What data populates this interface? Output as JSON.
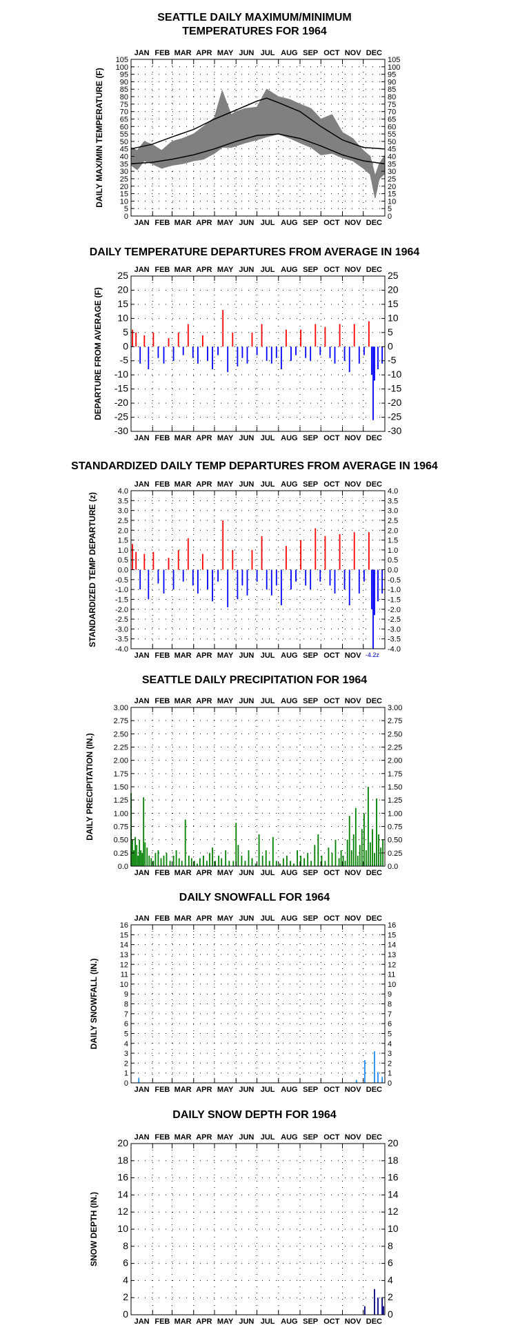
{
  "month_labels": [
    "JAN",
    "FEB",
    "MAR",
    "APR",
    "MAY",
    "JUN",
    "JUL",
    "AUG",
    "SEP",
    "OCT",
    "NOV",
    "DEC"
  ],
  "chart_data": [
    {
      "type": "area",
      "title_lines": [
        "SEATTLE DAILY MAXIMUM/MINIMUM",
        "TEMPERATURES FOR 1964"
      ],
      "ylabel": "DAILY MAX/MIN TEMPERATURE (F)",
      "ylim": [
        0,
        105
      ],
      "yticks": [
        "0",
        "5",
        "10",
        "15",
        "20",
        "25",
        "30",
        "35",
        "40",
        "45",
        "50",
        "55",
        "60",
        "65",
        "70",
        "75",
        "80",
        "85",
        "90",
        "95",
        "100",
        "105"
      ],
      "grid": true,
      "colors": {
        "band": "#808080",
        "normals": "#000000"
      },
      "series": [
        {
          "name": "",
          "role": "normal_max",
          "x_day": [
            1,
            31,
            60,
            91,
            121,
            152,
            182,
            196,
            213,
            244,
            274,
            305,
            335,
            365
          ],
          "values": [
            45,
            48,
            53,
            58,
            65,
            71,
            77,
            79,
            76,
            70,
            60,
            51,
            46,
            45
          ]
        },
        {
          "name": "",
          "role": "normal_min",
          "x_day": [
            1,
            31,
            60,
            91,
            121,
            152,
            182,
            213,
            244,
            274,
            305,
            335,
            365
          ],
          "values": [
            35,
            36,
            38,
            41,
            45,
            50,
            54,
            55,
            52,
            47,
            41,
            37,
            35
          ]
        },
        {
          "name": "",
          "role": "observed_max",
          "x_day": [
            1,
            10,
            20,
            31,
            45,
            60,
            75,
            91,
            105,
            121,
            132,
            145,
            152,
            165,
            182,
            196,
            213,
            230,
            244,
            260,
            274,
            290,
            305,
            320,
            335,
            345,
            352,
            358,
            365
          ],
          "values": [
            46,
            44,
            50,
            48,
            44,
            50,
            52,
            55,
            60,
            66,
            84,
            68,
            70,
            72,
            73,
            85,
            80,
            78,
            75,
            72,
            65,
            68,
            56,
            52,
            44,
            40,
            27,
            35,
            40
          ]
        },
        {
          "name": "",
          "role": "observed_min",
          "x_day": [
            1,
            10,
            20,
            31,
            45,
            60,
            75,
            91,
            105,
            121,
            132,
            145,
            152,
            165,
            182,
            196,
            213,
            230,
            244,
            260,
            274,
            290,
            305,
            320,
            335,
            345,
            352,
            358,
            365
          ],
          "values": [
            34,
            31,
            37,
            35,
            32,
            34,
            35,
            37,
            38,
            42,
            46,
            46,
            47,
            49,
            51,
            53,
            55,
            52,
            49,
            46,
            41,
            42,
            39,
            37,
            32,
            28,
            12,
            25,
            28
          ]
        }
      ]
    },
    {
      "type": "bar",
      "title": "DAILY TEMPERATURE DEPARTURES FROM AVERAGE IN 1964",
      "ylabel": "DEPARTURE FROM AVERAGE (F)",
      "ylim": [
        -30,
        25
      ],
      "yticks": [
        "-30",
        "-25",
        "-20",
        "-15",
        "-10",
        "-5",
        "0",
        "5",
        "10",
        "15",
        "20",
        "25"
      ],
      "grid": true,
      "colors": {
        "positive": "#ff0000",
        "negative": "#0000ff"
      },
      "x_day": [
        3,
        8,
        14,
        20,
        26,
        33,
        40,
        48,
        55,
        62,
        69,
        76,
        83,
        90,
        97,
        104,
        111,
        118,
        126,
        133,
        140,
        147,
        154,
        161,
        168,
        175,
        182,
        189,
        196,
        203,
        210,
        217,
        224,
        231,
        238,
        245,
        252,
        259,
        266,
        273,
        280,
        287,
        294,
        301,
        308,
        315,
        322,
        329,
        336,
        343,
        347,
        349,
        351,
        356,
        362
      ],
      "values": [
        6,
        5,
        -6,
        4,
        -8,
        5,
        -4,
        -6,
        3,
        -5,
        5,
        -3,
        8,
        -4,
        -6,
        4,
        -5,
        -8,
        -3,
        13,
        -9,
        5,
        -7,
        -4,
        -6,
        5,
        -3,
        8,
        -5,
        -6,
        -4,
        -8,
        6,
        -5,
        -3,
        6,
        -4,
        -5,
        8,
        -3,
        7,
        -4,
        -6,
        8,
        -5,
        -9,
        8,
        -6,
        -3,
        9,
        -10,
        -26,
        -12,
        -8,
        -6
      ]
    },
    {
      "type": "bar",
      "title": "STANDARDIZED DAILY TEMP DEPARTURES FROM AVERAGE IN 1964",
      "ylabel": "STANDARDIZED TEMP DEPARTURE (z)",
      "ylim": [
        -4.0,
        4.0
      ],
      "yticks": [
        "-4.0",
        "-3.5",
        "-3.0",
        "-2.5",
        "-2.0",
        "-1.5",
        "-1.0",
        "-0.5",
        "0.0",
        "0.5",
        "1.0",
        "1.5",
        "2.0",
        "2.5",
        "3.0",
        "3.5",
        "4.0"
      ],
      "grid": true,
      "colors": {
        "positive": "#ff0000",
        "negative": "#0000ff"
      },
      "annotation": "-4.2z",
      "x_day": [
        3,
        8,
        14,
        20,
        26,
        33,
        40,
        48,
        55,
        62,
        69,
        76,
        83,
        90,
        97,
        104,
        111,
        118,
        126,
        133,
        140,
        147,
        154,
        161,
        168,
        175,
        182,
        189,
        196,
        203,
        210,
        217,
        224,
        231,
        238,
        245,
        252,
        259,
        266,
        273,
        280,
        287,
        294,
        301,
        308,
        315,
        322,
        329,
        336,
        343,
        347,
        349,
        351,
        356,
        362
      ],
      "values": [
        1.3,
        0.9,
        -1.0,
        0.8,
        -1.5,
        0.9,
        -0.7,
        -1.2,
        0.6,
        -1.0,
        1.0,
        -0.6,
        1.6,
        -0.8,
        -1.2,
        0.8,
        -1.0,
        -1.6,
        -0.6,
        2.5,
        -1.9,
        1.0,
        -1.5,
        -0.8,
        -1.3,
        1.0,
        -0.6,
        1.7,
        -1.0,
        -1.3,
        -0.8,
        -1.8,
        1.2,
        -1.0,
        -0.6,
        1.5,
        -0.8,
        -1.0,
        2.1,
        -0.6,
        1.7,
        -0.8,
        -1.2,
        1.8,
        -1.0,
        -1.8,
        1.9,
        -1.2,
        -0.6,
        1.9,
        -2.0,
        -4.2,
        -2.3,
        -1.6,
        -1.2
      ]
    },
    {
      "type": "bar",
      "title": "SEATTLE DAILY PRECIPITATION FOR 1964",
      "ylabel": "DAILY PRECIPITATION (IN.)",
      "ylim": [
        0,
        3.0
      ],
      "yticks": [
        "0.0",
        "0.25",
        "0.50",
        "0.75",
        "1.00",
        "1.25",
        "1.50",
        "1.75",
        "2.00",
        "2.25",
        "2.50",
        "2.75",
        "3.00"
      ],
      "grid": true,
      "colors": {
        "bars": "#008000"
      },
      "x_day": [
        1,
        3,
        5,
        7,
        9,
        11,
        13,
        15,
        17,
        19,
        21,
        24,
        27,
        30,
        33,
        36,
        40,
        44,
        48,
        52,
        57,
        62,
        66,
        70,
        74,
        79,
        84,
        88,
        92,
        96,
        100,
        105,
        110,
        114,
        118,
        122,
        127,
        131,
        137,
        142,
        148,
        152,
        155,
        160,
        165,
        170,
        175,
        180,
        185,
        190,
        195,
        200,
        205,
        210,
        215,
        220,
        225,
        230,
        235,
        240,
        245,
        250,
        255,
        260,
        265,
        270,
        275,
        280,
        285,
        290,
        295,
        300,
        303,
        306,
        309,
        312,
        315,
        318,
        321,
        324,
        327,
        330,
        333,
        336,
        339,
        342,
        345,
        348,
        351,
        354,
        357,
        360,
        363
      ],
      "values": [
        1.38,
        0.5,
        0.3,
        0.55,
        0.4,
        0.2,
        0.5,
        0.3,
        0.25,
        1.3,
        0.45,
        0.35,
        0.2,
        0.15,
        0.1,
        0.25,
        0.3,
        0.15,
        0.2,
        0.25,
        0.1,
        0.2,
        0.3,
        0.15,
        0.1,
        0.88,
        0.2,
        0.15,
        0.1,
        0.05,
        0.15,
        0.2,
        0.1,
        0.25,
        0.35,
        0.1,
        0.2,
        0.15,
        0.3,
        0.1,
        0.1,
        0.82,
        0.4,
        0.2,
        0.1,
        0.3,
        0.15,
        0.05,
        0.6,
        0.2,
        0.3,
        0.1,
        0.55,
        0.1,
        0.05,
        0.15,
        0.2,
        0.1,
        0.05,
        0.3,
        0.2,
        0.15,
        0.25,
        0.1,
        0.4,
        0.6,
        0.2,
        0.1,
        0.35,
        0.25,
        0.5,
        0.15,
        0.3,
        0.2,
        0.1,
        0.5,
        0.95,
        0.3,
        0.6,
        1.1,
        0.2,
        0.4,
        0.7,
        1.0,
        0.3,
        1.5,
        0.45,
        0.7,
        0.25,
        1.28,
        0.6,
        0.35,
        0.5
      ]
    },
    {
      "type": "bar",
      "title": "DAILY SNOWFALL FOR 1964",
      "ylabel": "DAILY SNOWFALL (IN.)",
      "ylim": [
        0,
        16
      ],
      "yticks": [
        "0",
        "1",
        "2",
        "3",
        "4",
        "5",
        "6",
        "7",
        "8",
        "9",
        "10",
        "11",
        "12",
        "13",
        "14",
        "15",
        "16"
      ],
      "grid": true,
      "colors": {
        "bars": "#1e90ff"
      },
      "x_day": [
        12,
        325,
        337,
        351,
        356,
        362
      ],
      "values": [
        0.5,
        0.3,
        2.3,
        3.2,
        1.1,
        0.6
      ]
    },
    {
      "type": "bar",
      "title": "DAILY SNOW DEPTH FOR 1964",
      "ylabel": "SNOW DEPTH (IN.)",
      "ylim": [
        0,
        20
      ],
      "yticks": [
        "0",
        "2",
        "4",
        "6",
        "8",
        "10",
        "12",
        "14",
        "16",
        "18",
        "20"
      ],
      "grid": true,
      "colors": {
        "bars": "#000080"
      },
      "x_day": [
        337,
        351,
        356,
        362,
        364
      ],
      "values": [
        1,
        3,
        2,
        2,
        1
      ]
    }
  ]
}
